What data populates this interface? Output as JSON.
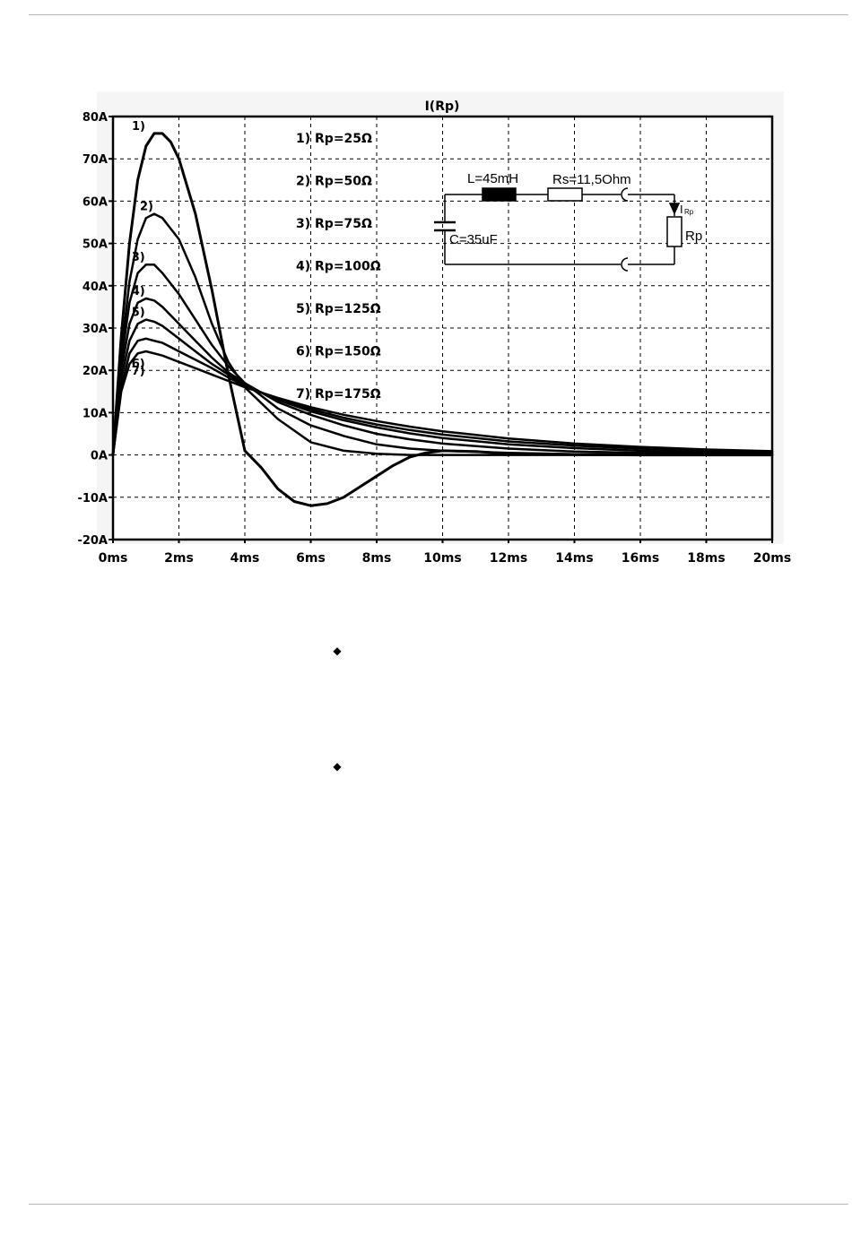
{
  "bullets": [
    {
      "symbol": "◆",
      "icon": "diamond-bullet-icon"
    },
    {
      "symbol": "◆",
      "icon": "diamond-bullet-icon"
    }
  ],
  "chart_data": {
    "type": "line",
    "title": "I(Rp)",
    "xlabel": "",
    "ylabel": "",
    "x_unit": "ms",
    "y_unit": "A",
    "xlim": [
      0,
      20
    ],
    "ylim": [
      -20,
      80
    ],
    "x_ticks": [
      "0ms",
      "2ms",
      "4ms",
      "6ms",
      "8ms",
      "10ms",
      "12ms",
      "14ms",
      "16ms",
      "18ms",
      "20ms"
    ],
    "y_ticks": [
      "80A",
      "70A",
      "60A",
      "50A",
      "40A",
      "30A",
      "20A",
      "10A",
      "0A",
      "-10A",
      "-20A"
    ],
    "grid": true,
    "series": [
      {
        "name": "1) Rp=25Ω",
        "label": "1)",
        "x": [
          0,
          0.25,
          0.5,
          0.75,
          1,
          1.25,
          1.5,
          1.75,
          2,
          2.5,
          3,
          3.5,
          4,
          4.5,
          5,
          5.5,
          6,
          6.5,
          7,
          7.5,
          8,
          8.5,
          9,
          9.5,
          10,
          11,
          12,
          14,
          16,
          18,
          20
        ],
        "y": [
          0,
          28,
          50,
          65,
          73,
          76,
          76,
          74,
          70,
          57,
          39,
          19,
          1,
          -3,
          -8,
          -11,
          -12,
          -11.5,
          -10,
          -7.5,
          -5,
          -2.5,
          -0.5,
          0.5,
          1,
          0.8,
          0.3,
          0.1,
          0,
          0,
          0
        ]
      },
      {
        "name": "2) Rp=50Ω",
        "label": "2)",
        "x": [
          0,
          0.25,
          0.5,
          0.75,
          1,
          1.25,
          1.5,
          2,
          2.5,
          3,
          3.5,
          4,
          5,
          6,
          7,
          8,
          9,
          10,
          12,
          14,
          16,
          18,
          20
        ],
        "y": [
          0,
          24,
          41,
          51,
          56,
          57,
          56,
          51,
          42,
          31,
          22,
          16,
          8.5,
          3,
          1,
          0.3,
          0,
          0,
          0,
          0,
          0,
          0,
          0
        ]
      },
      {
        "name": "3) Rp=75Ω",
        "label": "3)",
        "x": [
          0,
          0.25,
          0.5,
          0.75,
          1,
          1.25,
          1.5,
          2,
          2.5,
          3,
          3.5,
          4,
          5,
          6,
          7,
          8,
          9,
          10,
          12,
          14,
          16,
          18,
          20
        ],
        "y": [
          0,
          22,
          36,
          43,
          45,
          45,
          43,
          38,
          32,
          26,
          21,
          17,
          11,
          7,
          4.5,
          2.5,
          1.5,
          1,
          0.5,
          0.2,
          0.1,
          0,
          0
        ]
      },
      {
        "name": "4) Rp=100Ω",
        "label": "4)",
        "x": [
          0,
          0.25,
          0.5,
          0.75,
          1,
          1.25,
          1.5,
          2,
          2.5,
          3,
          3.5,
          4,
          5,
          6,
          7,
          8,
          9,
          10,
          12,
          14,
          16,
          18,
          20
        ],
        "y": [
          0,
          20,
          31,
          36,
          37,
          36.5,
          35,
          31,
          27,
          23,
          19.5,
          17,
          12.5,
          9.5,
          7,
          5,
          3.7,
          2.7,
          1.5,
          0.8,
          0.5,
          0.3,
          0.2
        ]
      },
      {
        "name": "5) Rp=125Ω",
        "label": "5)",
        "x": [
          0,
          0.25,
          0.5,
          0.75,
          1,
          1.25,
          1.5,
          2,
          2.5,
          3,
          3.5,
          4,
          5,
          6,
          7,
          8,
          9,
          10,
          12,
          14,
          16,
          18,
          20
        ],
        "y": [
          0,
          18,
          27,
          31,
          32,
          31.5,
          30.5,
          27.5,
          24.5,
          21.5,
          19,
          16.5,
          13,
          10.3,
          8.2,
          6.5,
          5.1,
          4,
          2.5,
          1.6,
          1,
          0.6,
          0.4
        ]
      },
      {
        "name": "6) Rp=150Ω",
        "label": "6)",
        "x": [
          0,
          0.25,
          0.5,
          0.75,
          1,
          1.25,
          1.5,
          2,
          2.5,
          3,
          3.5,
          4,
          5,
          6,
          7,
          8,
          9,
          10,
          12,
          14,
          16,
          18,
          20
        ],
        "y": [
          0,
          16,
          24,
          27,
          27.5,
          27,
          26.5,
          24.5,
          22.5,
          20.5,
          18.3,
          16.3,
          13.2,
          10.8,
          8.8,
          7.2,
          5.9,
          4.8,
          3.2,
          2.2,
          1.5,
          1,
          0.7
        ]
      },
      {
        "name": "7) Rp=175Ω",
        "label": "7)",
        "x": [
          0,
          0.25,
          0.5,
          0.75,
          1,
          1.25,
          1.5,
          2,
          2.5,
          3,
          3.5,
          4,
          5,
          6,
          7,
          8,
          9,
          10,
          12,
          14,
          16,
          18,
          20
        ],
        "y": [
          0,
          15,
          21.5,
          24,
          24.5,
          24,
          23.5,
          22,
          20.5,
          19,
          17.5,
          16,
          13.5,
          11.3,
          9.5,
          8,
          6.7,
          5.6,
          3.9,
          2.7,
          1.9,
          1.3,
          0.9
        ]
      }
    ],
    "legend": [
      "1) Rp=25Ω",
      "2) Rp=50Ω",
      "3) Rp=75Ω",
      "4) Rp=100Ω",
      "5) Rp=125Ω",
      "6) Rp=150Ω",
      "7) Rp=175Ω"
    ],
    "legend_placement": "top-center",
    "inset_circuit": {
      "inductor": "L=45mH",
      "series_resistor": "Rs=11,5Ohm",
      "capacitor": "C=35uF",
      "load_resistor": "Rp",
      "current_label": "I",
      "current_subscript": "Rp"
    }
  }
}
